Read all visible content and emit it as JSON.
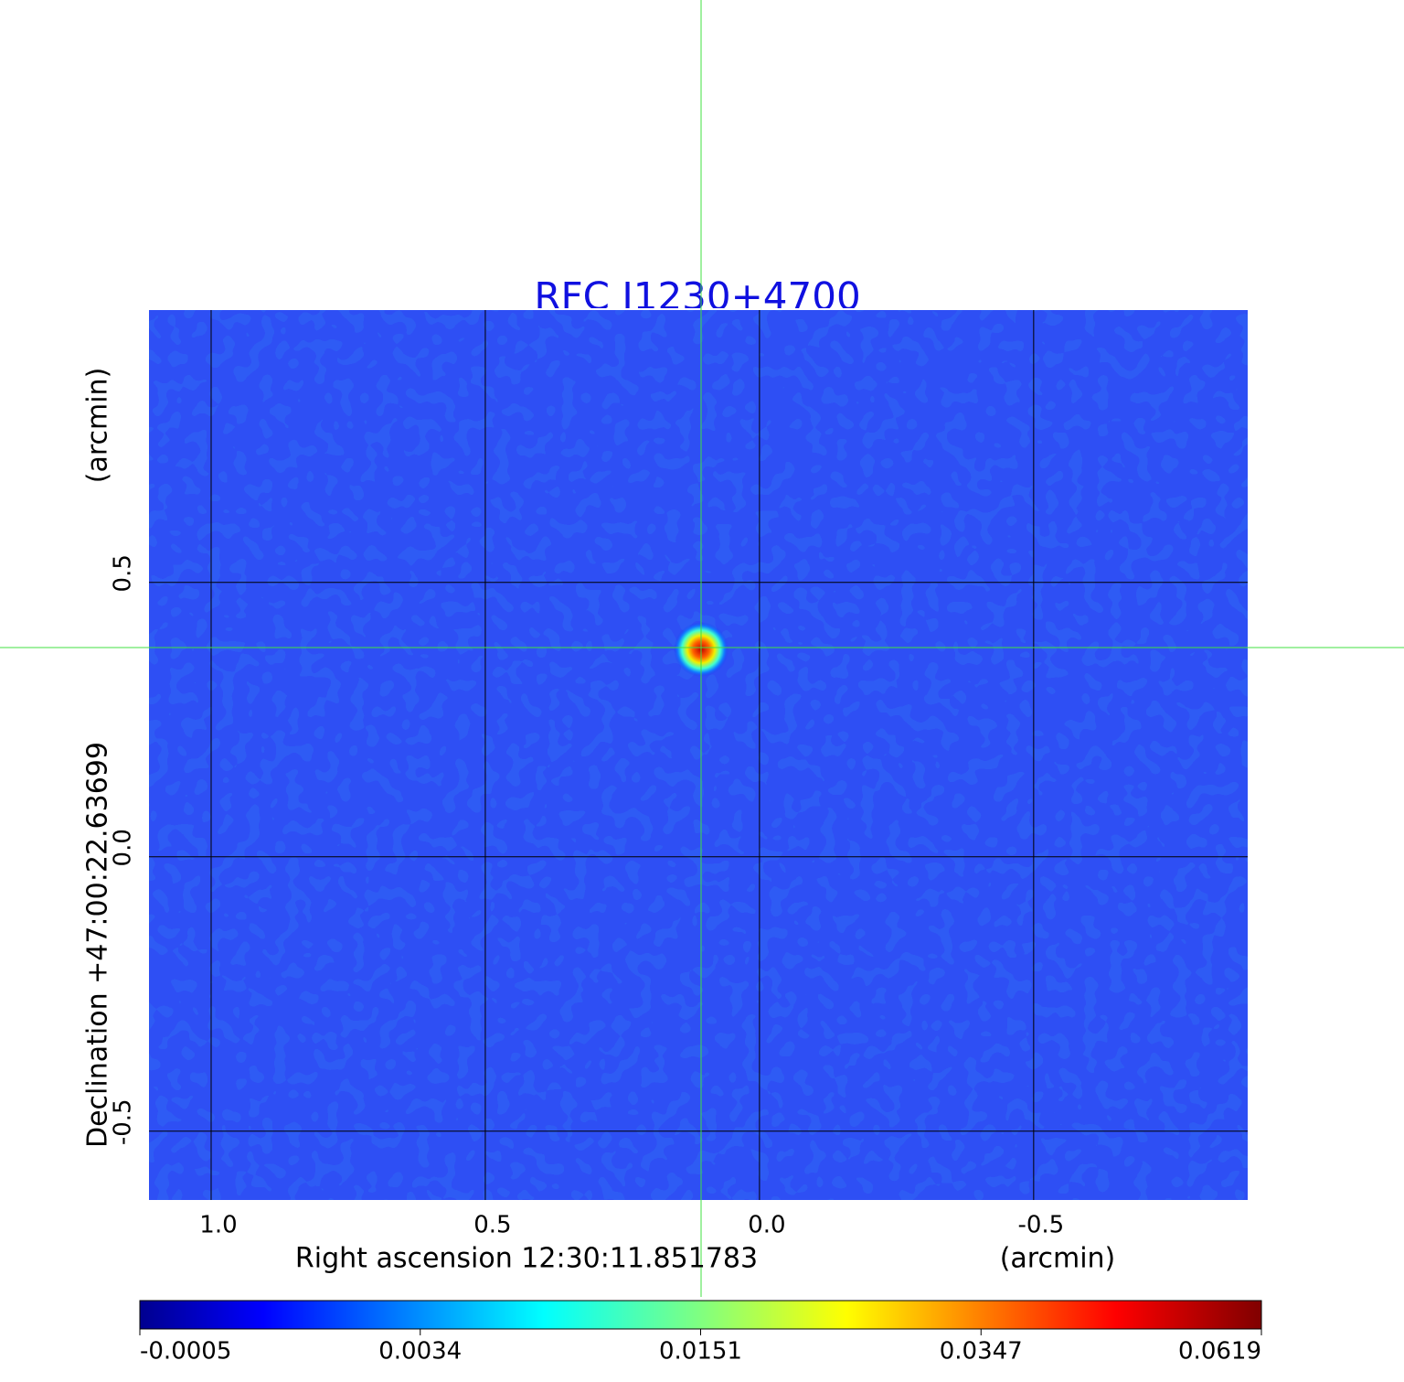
{
  "chart_data": {
    "type": "image",
    "title": "RFC J1230+4700",
    "x_label": "Right ascension  12:30:11.851783",
    "x_unit": "(arcmin)",
    "y_label": "Declination  +47:00:22.63699",
    "y_unit": "(arcmin)",
    "xlim": [
      1.115,
      -0.892
    ],
    "ylim": [
      -0.627,
      0.998
    ],
    "xticks": [
      {
        "value": 1,
        "label": "1.0"
      },
      0.5,
      {
        "value": 0,
        "label": "0.0"
      },
      -0.5
    ],
    "yticks": [
      0.5,
      {
        "value": 0,
        "label": "0.0"
      },
      -0.5
    ],
    "grid": true,
    "colorbar_ticks": [
      -0.0005,
      0.0034,
      0.0151,
      0.0347,
      0.0619
    ],
    "colormap": "jet"
  }
}
